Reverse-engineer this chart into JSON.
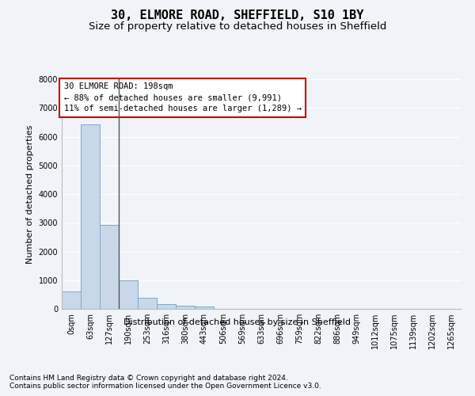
{
  "title1": "30, ELMORE ROAD, SHEFFIELD, S10 1BY",
  "title2": "Size of property relative to detached houses in Sheffield",
  "xlabel": "Distribution of detached houses by size in Sheffield",
  "ylabel": "Number of detached properties",
  "bar_labels": [
    "0sqm",
    "63sqm",
    "127sqm",
    "190sqm",
    "253sqm",
    "316sqm",
    "380sqm",
    "443sqm",
    "506sqm",
    "569sqm",
    "633sqm",
    "696sqm",
    "759sqm",
    "822sqm",
    "886sqm",
    "949sqm",
    "1012sqm",
    "1075sqm",
    "1139sqm",
    "1202sqm",
    "1265sqm"
  ],
  "bar_values": [
    620,
    6430,
    2920,
    1000,
    380,
    160,
    100,
    80,
    0,
    0,
    0,
    0,
    0,
    0,
    0,
    0,
    0,
    0,
    0,
    0,
    0
  ],
  "bar_color": "#c8d8e8",
  "bar_edge_color": "#7aaac8",
  "highlight_bar_index": 3,
  "highlight_line_color": "#555555",
  "ylim": [
    0,
    8000
  ],
  "yticks": [
    0,
    1000,
    2000,
    3000,
    4000,
    5000,
    6000,
    7000,
    8000
  ],
  "annotation_title": "30 ELMORE ROAD: 198sqm",
  "annotation_line1": "← 88% of detached houses are smaller (9,991)",
  "annotation_line2": "11% of semi-detached houses are larger (1,289) →",
  "annotation_box_color": "#ffffff",
  "annotation_border_color": "#cc0000",
  "footer1": "Contains HM Land Registry data © Crown copyright and database right 2024.",
  "footer2": "Contains public sector information licensed under the Open Government Licence v3.0.",
  "bg_color": "#f0f4f8",
  "grid_color": "#ffffff",
  "title1_fontsize": 11,
  "title2_fontsize": 9.5,
  "axis_label_fontsize": 8,
  "tick_fontsize": 7,
  "annotation_fontsize": 7.5,
  "footer_fontsize": 6.5
}
